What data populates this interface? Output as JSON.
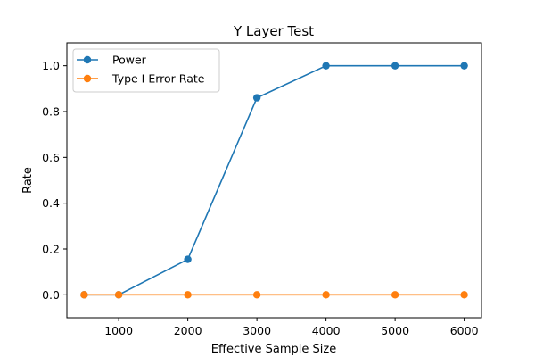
{
  "chart_data": {
    "type": "line",
    "title": "Y Layer Test",
    "xlabel": "Effective Sample Size",
    "ylabel": "Rate",
    "xlim": [
      250,
      6250
    ],
    "ylim": [
      -0.1,
      1.1
    ],
    "xticks": [
      1000,
      2000,
      3000,
      4000,
      5000,
      6000
    ],
    "xtick_labels": [
      "1000",
      "2000",
      "3000",
      "4000",
      "5000",
      "6000"
    ],
    "yticks": [
      0.0,
      0.2,
      0.4,
      0.6,
      0.8,
      1.0
    ],
    "ytick_labels": [
      "0.0",
      "0.2",
      "0.4",
      "0.6",
      "0.8",
      "1.0"
    ],
    "grid": false,
    "legend_position": "top-left",
    "x": [
      500,
      1000,
      2000,
      3000,
      4000,
      5000,
      6000
    ],
    "series": [
      {
        "name": "Power",
        "color": "#1f77b4",
        "marker": "circle",
        "values": [
          0.0,
          0.0,
          0.155,
          0.86,
          1.0,
          1.0,
          1.0
        ]
      },
      {
        "name": "Type I Error Rate",
        "color": "#ff7f0e",
        "marker": "circle",
        "values": [
          0.0,
          0.0,
          0.0,
          0.0,
          0.0,
          0.0,
          0.0
        ]
      }
    ]
  }
}
